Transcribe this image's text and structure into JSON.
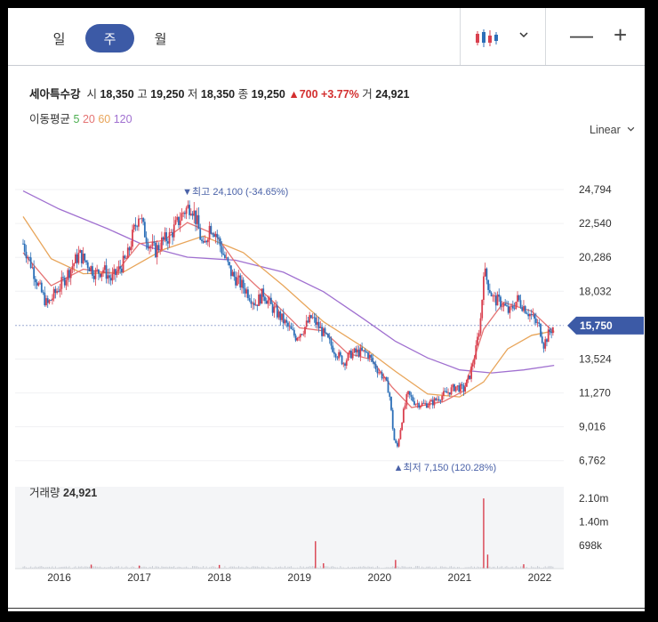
{
  "period_tabs": [
    "일",
    "주",
    "월"
  ],
  "active_tab": "주",
  "toolbar": {
    "dropdown_icon": "chevron-down-icon",
    "zoom_out": "—",
    "zoom_in": "+"
  },
  "info": {
    "name": "세아특수강",
    "open_label": "시",
    "open": "18,350",
    "high_label": "고",
    "high": "19,250",
    "low_label": "저",
    "low": "18,350",
    "close_label": "종",
    "close": "19,250",
    "change": "▲700 +3.77%",
    "volume_label": "거",
    "volume": "24,921"
  },
  "ma": {
    "label": "이동평균",
    "p5": "5",
    "p20": "20",
    "p60": "60",
    "p120": "120"
  },
  "scale_label": "Linear",
  "volume_section": {
    "label": "거래량",
    "value": "24,921"
  },
  "colors": {
    "up": "#d9404f",
    "down": "#2c6fb8",
    "ma5": "#4caf50",
    "ma20": "#e57373",
    "ma60": "#e8a55a",
    "ma120": "#a070d0",
    "accent": "#3c5aa6"
  },
  "chart_data": {
    "type": "candlestick",
    "price_ticks": [
      "24,794",
      "22,540",
      "20,286",
      "18,032",
      "15,750",
      "13,524",
      "11,270",
      "9,016",
      "6,762"
    ],
    "price_tick_values": [
      24794,
      22540,
      20286,
      18032,
      15750,
      13524,
      11270,
      9016,
      6762
    ],
    "current_price": "15,750",
    "current_price_value": 15750,
    "year_labels": [
      "2016",
      "2017",
      "2018",
      "2019",
      "2020",
      "2021",
      "2022"
    ],
    "high_annotation": "▼최고 24,100 (-34.65%)",
    "high_value": 24100,
    "high_date": 2017.65,
    "low_annotation": "▲최저 7,150 (120.28%)",
    "low_value": 7150,
    "low_date": 2020.22,
    "volume_ticks": [
      "2.10m",
      "1.40m",
      "698k"
    ],
    "volume_tick_values": [
      2100000,
      1400000,
      698000
    ],
    "price_path": [
      [
        2015.55,
        21200
      ],
      [
        2015.65,
        19800
      ],
      [
        2015.75,
        18300
      ],
      [
        2015.85,
        17100
      ],
      [
        2015.95,
        17900
      ],
      [
        2016.05,
        18700
      ],
      [
        2016.15,
        19600
      ],
      [
        2016.25,
        20500
      ],
      [
        2016.35,
        19900
      ],
      [
        2016.45,
        19200
      ],
      [
        2016.55,
        19500
      ],
      [
        2016.65,
        18800
      ],
      [
        2016.75,
        19500
      ],
      [
        2016.85,
        20300
      ],
      [
        2016.93,
        22000
      ],
      [
        2017.0,
        23300
      ],
      [
        2017.05,
        22200
      ],
      [
        2017.12,
        21200
      ],
      [
        2017.2,
        20700
      ],
      [
        2017.28,
        21300
      ],
      [
        2017.38,
        21700
      ],
      [
        2017.48,
        22600
      ],
      [
        2017.55,
        23300
      ],
      [
        2017.65,
        23800
      ],
      [
        2017.72,
        22600
      ],
      [
        2017.8,
        20800
      ],
      [
        2017.88,
        22400
      ],
      [
        2017.95,
        22000
      ],
      [
        2018.05,
        20500
      ],
      [
        2018.15,
        19200
      ],
      [
        2018.25,
        18600
      ],
      [
        2018.35,
        18000
      ],
      [
        2018.45,
        17200
      ],
      [
        2018.55,
        17900
      ],
      [
        2018.65,
        17000
      ],
      [
        2018.75,
        16400
      ],
      [
        2018.85,
        15700
      ],
      [
        2018.95,
        15000
      ],
      [
        2019.05,
        15500
      ],
      [
        2019.15,
        16300
      ],
      [
        2019.25,
        15600
      ],
      [
        2019.35,
        14800
      ],
      [
        2019.45,
        14000
      ],
      [
        2019.55,
        13300
      ],
      [
        2019.65,
        13900
      ],
      [
        2019.75,
        14000
      ],
      [
        2019.85,
        13900
      ],
      [
        2019.95,
        13000
      ],
      [
        2020.05,
        12300
      ],
      [
        2020.12,
        11400
      ],
      [
        2020.18,
        8200
      ],
      [
        2020.22,
        7600
      ],
      [
        2020.28,
        9500
      ],
      [
        2020.35,
        11200
      ],
      [
        2020.45,
        10600
      ],
      [
        2020.55,
        10500
      ],
      [
        2020.65,
        10600
      ],
      [
        2020.75,
        11000
      ],
      [
        2020.85,
        11300
      ],
      [
        2020.95,
        11700
      ],
      [
        2021.05,
        11500
      ],
      [
        2021.12,
        12300
      ],
      [
        2021.2,
        14000
      ],
      [
        2021.27,
        16500
      ],
      [
        2021.3,
        19500
      ],
      [
        2021.35,
        18600
      ],
      [
        2021.42,
        17500
      ],
      [
        2021.52,
        17300
      ],
      [
        2021.62,
        16600
      ],
      [
        2021.72,
        17500
      ],
      [
        2021.82,
        16900
      ],
      [
        2021.92,
        16200
      ],
      [
        2022.0,
        15600
      ],
      [
        2022.05,
        14500
      ],
      [
        2022.12,
        15300
      ],
      [
        2022.18,
        15750
      ]
    ],
    "ma20": [
      [
        2015.55,
        20600
      ],
      [
        2015.9,
        18400
      ],
      [
        2016.3,
        19500
      ],
      [
        2016.7,
        19200
      ],
      [
        2017.0,
        21200
      ],
      [
        2017.3,
        21400
      ],
      [
        2017.6,
        22600
      ],
      [
        2017.95,
        21800
      ],
      [
        2018.3,
        19200
      ],
      [
        2018.7,
        17200
      ],
      [
        2019.0,
        15600
      ],
      [
        2019.3,
        15400
      ],
      [
        2019.6,
        13900
      ],
      [
        2019.9,
        13500
      ],
      [
        2020.15,
        11700
      ],
      [
        2020.4,
        10300
      ],
      [
        2020.8,
        10700
      ],
      [
        2021.05,
        11400
      ],
      [
        2021.3,
        15500
      ],
      [
        2021.55,
        17300
      ],
      [
        2021.9,
        16700
      ],
      [
        2022.18,
        15300
      ]
    ],
    "ma60": [
      [
        2015.55,
        23000
      ],
      [
        2015.9,
        20200
      ],
      [
        2016.3,
        19200
      ],
      [
        2016.8,
        19300
      ],
      [
        2017.3,
        20800
      ],
      [
        2017.8,
        21700
      ],
      [
        2018.3,
        20600
      ],
      [
        2018.8,
        18400
      ],
      [
        2019.3,
        16000
      ],
      [
        2019.8,
        14300
      ],
      [
        2020.2,
        12700
      ],
      [
        2020.6,
        11200
      ],
      [
        2021.0,
        11000
      ],
      [
        2021.3,
        12000
      ],
      [
        2021.6,
        14200
      ],
      [
        2021.9,
        15100
      ],
      [
        2022.18,
        15400
      ]
    ],
    "ma120": [
      [
        2015.55,
        24700
      ],
      [
        2016.0,
        23500
      ],
      [
        2016.6,
        22200
      ],
      [
        2017.1,
        21000
      ],
      [
        2017.6,
        20300
      ],
      [
        2018.2,
        20100
      ],
      [
        2018.8,
        19300
      ],
      [
        2019.3,
        18000
      ],
      [
        2019.8,
        16200
      ],
      [
        2020.2,
        14700
      ],
      [
        2020.6,
        13600
      ],
      [
        2021.0,
        12800
      ],
      [
        2021.4,
        12600
      ],
      [
        2021.8,
        12800
      ],
      [
        2022.18,
        13100
      ]
    ],
    "volume_spikes": [
      [
        2016.4,
        120000
      ],
      [
        2017.0,
        90000
      ],
      [
        2018.0,
        110000
      ],
      [
        2019.2,
        820000
      ],
      [
        2019.3,
        160000
      ],
      [
        2020.2,
        260000
      ],
      [
        2021.3,
        2100000
      ],
      [
        2021.35,
        420000
      ],
      [
        2021.8,
        130000
      ]
    ]
  }
}
